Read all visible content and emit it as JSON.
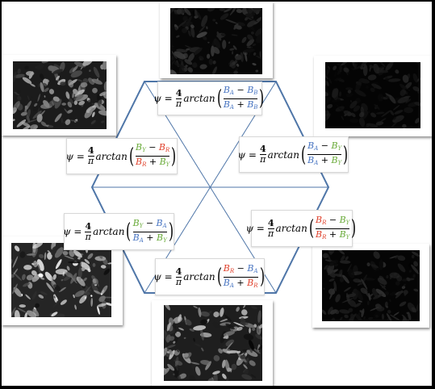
{
  "colors": {
    "red": "#e0442f",
    "blue": "#4a76c2",
    "green": "#6aab3a",
    "line": "#4f76a8"
  },
  "photos": [
    {
      "name": "photo-top",
      "caption": "",
      "seed": 3,
      "brightness": 0.12
    },
    {
      "name": "photo-top-right",
      "caption": "",
      "seed": 7,
      "brightness": 0.06
    },
    {
      "name": "photo-right",
      "caption": "",
      "seed": 11,
      "brightness": 0.09
    },
    {
      "name": "photo-bottom",
      "caption": "",
      "seed": 5,
      "brightness": 0.5
    },
    {
      "name": "photo-left-bottom",
      "caption": "",
      "seed": 9,
      "brightness": 0.62
    },
    {
      "name": "photo-top-left",
      "caption": "",
      "seed": 13,
      "brightness": 0.45
    }
  ],
  "formula": {
    "psi": "ψ =",
    "coef_num": "4",
    "coef_den": "π",
    "fn": "arctan",
    "minus": "−",
    "plus": "+"
  },
  "equations": [
    {
      "name": "equation-top",
      "num": [
        [
          "B",
          "A",
          "blue"
        ],
        [
          "B",
          "B",
          "blue"
        ]
      ],
      "den": [
        [
          "B",
          "A",
          "blue"
        ],
        [
          "B",
          "B",
          "blue"
        ]
      ]
    },
    {
      "name": "equation-right-upper",
      "num": [
        [
          "B",
          "A",
          "blue"
        ],
        [
          "B",
          "Y",
          "green"
        ]
      ],
      "den": [
        [
          "B",
          "A",
          "blue"
        ],
        [
          "B",
          "Y",
          "green"
        ]
      ]
    },
    {
      "name": "equation-right-lower",
      "num": [
        [
          "B",
          "R",
          "red"
        ],
        [
          "B",
          "Y",
          "green"
        ]
      ],
      "den": [
        [
          "B",
          "R",
          "red"
        ],
        [
          "B",
          "Y",
          "green"
        ]
      ]
    },
    {
      "name": "equation-bottom",
      "num": [
        [
          "B",
          "R",
          "red"
        ],
        [
          "B",
          "A",
          "blue"
        ]
      ],
      "den": [
        [
          "B",
          "A",
          "blue"
        ],
        [
          "B",
          "R",
          "red"
        ]
      ]
    },
    {
      "name": "equation-left-lower",
      "num": [
        [
          "B",
          "Y",
          "green"
        ],
        [
          "B",
          "A",
          "blue"
        ]
      ],
      "den": [
        [
          "B",
          "A",
          "blue"
        ],
        [
          "B",
          "Y",
          "green"
        ]
      ]
    },
    {
      "name": "equation-left-upper",
      "num": [
        [
          "B",
          "Y",
          "green"
        ],
        [
          "B",
          "R",
          "red"
        ]
      ],
      "den": [
        [
          "B",
          "R",
          "red"
        ],
        [
          "B",
          "Y",
          "green"
        ]
      ]
    }
  ]
}
